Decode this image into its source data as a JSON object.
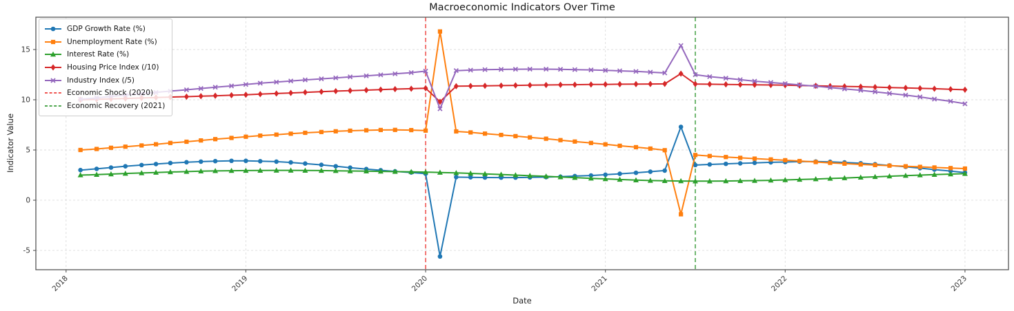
{
  "chart_data": {
    "type": "line",
    "title": "Macroeconomic Indicators Over Time",
    "xlabel": "Date",
    "ylabel": "Indicator Value",
    "grid": true,
    "legend_position": "upper left",
    "xlim": [
      2017.832,
      2023.242
    ],
    "ylim": [
      -6.92,
      18.22
    ],
    "y_ticks": [
      -5,
      0,
      5,
      10,
      15
    ],
    "x_ticks": [
      2018,
      2019,
      2020,
      2021,
      2022,
      2023
    ],
    "x_tick_labels": [
      "2018",
      "2019",
      "2020",
      "2021",
      "2022",
      "2023"
    ],
    "x": [
      2018.08,
      2018.17,
      2018.25,
      2018.33,
      2018.42,
      2018.5,
      2018.58,
      2018.67,
      2018.75,
      2018.83,
      2018.92,
      2019.0,
      2019.08,
      2019.17,
      2019.25,
      2019.33,
      2019.42,
      2019.5,
      2019.58,
      2019.67,
      2019.75,
      2019.83,
      2019.92,
      2020.0,
      2020.08,
      2020.17,
      2020.25,
      2020.33,
      2020.42,
      2020.5,
      2020.58,
      2020.67,
      2020.75,
      2020.83,
      2020.92,
      2021.0,
      2021.08,
      2021.17,
      2021.25,
      2021.33,
      2021.42,
      2021.5,
      2021.58,
      2021.67,
      2021.75,
      2021.83,
      2021.92,
      2022.0,
      2022.08,
      2022.17,
      2022.25,
      2022.33,
      2022.42,
      2022.5,
      2022.58,
      2022.67,
      2022.75,
      2022.83,
      2022.92,
      2023.0
    ],
    "series": [
      {
        "name": "GDP Growth Rate (%)",
        "color": "#1f77b4",
        "marker": "circle",
        "values": [
          3.0,
          3.12,
          3.25,
          3.38,
          3.5,
          3.6,
          3.7,
          3.78,
          3.84,
          3.89,
          3.92,
          3.92,
          3.88,
          3.84,
          3.76,
          3.65,
          3.52,
          3.38,
          3.24,
          3.1,
          2.98,
          2.87,
          2.76,
          2.64,
          -5.6,
          2.3,
          2.28,
          2.26,
          2.25,
          2.25,
          2.27,
          2.3,
          2.34,
          2.4,
          2.46,
          2.54,
          2.63,
          2.73,
          2.84,
          2.95,
          7.3,
          3.5,
          3.56,
          3.62,
          3.67,
          3.72,
          3.77,
          3.8,
          3.84,
          3.85,
          3.82,
          3.76,
          3.68,
          3.58,
          3.46,
          3.33,
          3.19,
          3.05,
          2.9,
          2.75
        ]
      },
      {
        "name": "Unemployment Rate (%)",
        "color": "#ff7f0e",
        "marker": "square",
        "values": [
          5.0,
          5.1,
          5.22,
          5.33,
          5.45,
          5.57,
          5.7,
          5.82,
          5.95,
          6.08,
          6.2,
          6.32,
          6.43,
          6.53,
          6.62,
          6.71,
          6.79,
          6.86,
          6.92,
          6.96,
          6.99,
          7.0,
          6.98,
          6.93,
          16.8,
          6.85,
          6.75,
          6.63,
          6.5,
          6.38,
          6.25,
          6.12,
          5.98,
          5.84,
          5.7,
          5.56,
          5.42,
          5.28,
          5.14,
          4.98,
          -1.4,
          4.5,
          4.4,
          4.3,
          4.22,
          4.14,
          4.06,
          3.98,
          3.9,
          3.8,
          3.72,
          3.64,
          3.56,
          3.5,
          3.44,
          3.38,
          3.32,
          3.26,
          3.2,
          3.15
        ]
      },
      {
        "name": "Interest Rate (%)",
        "color": "#2ca02c",
        "marker": "triangle",
        "values": [
          2.5,
          2.55,
          2.6,
          2.66,
          2.71,
          2.76,
          2.81,
          2.85,
          2.89,
          2.92,
          2.94,
          2.95,
          2.96,
          2.97,
          2.97,
          2.96,
          2.95,
          2.93,
          2.91,
          2.89,
          2.87,
          2.85,
          2.83,
          2.8,
          2.76,
          2.72,
          2.67,
          2.62,
          2.56,
          2.5,
          2.44,
          2.38,
          2.31,
          2.25,
          2.18,
          2.12,
          2.06,
          2.0,
          1.96,
          1.93,
          1.91,
          1.9,
          1.9,
          1.91,
          1.93,
          1.95,
          1.98,
          2.02,
          2.06,
          2.11,
          2.16,
          2.21,
          2.27,
          2.33,
          2.39,
          2.45,
          2.5,
          2.55,
          2.6,
          2.64
        ]
      },
      {
        "name": "Housing Price Index (/10)",
        "color": "#d62728",
        "marker": "diamond",
        "values": [
          10.0,
          10.04,
          10.09,
          10.13,
          10.18,
          10.22,
          10.27,
          10.31,
          10.36,
          10.4,
          10.45,
          10.5,
          10.56,
          10.62,
          10.68,
          10.74,
          10.8,
          10.86,
          10.91,
          10.96,
          11.01,
          11.06,
          11.1,
          11.15,
          9.8,
          11.35,
          11.37,
          11.39,
          11.41,
          11.43,
          11.45,
          11.47,
          11.49,
          11.5,
          11.52,
          11.53,
          11.55,
          11.56,
          11.57,
          11.58,
          12.6,
          11.57,
          11.55,
          11.53,
          11.51,
          11.49,
          11.47,
          11.45,
          11.42,
          11.39,
          11.36,
          11.33,
          11.3,
          11.26,
          11.22,
          11.18,
          11.14,
          11.1,
          11.05,
          11.0
        ]
      },
      {
        "name": "Industry Index (/5)",
        "color": "#9467bd",
        "marker": "x",
        "values": [
          10.05,
          10.19,
          10.33,
          10.47,
          10.6,
          10.73,
          10.86,
          10.99,
          11.12,
          11.25,
          11.38,
          11.52,
          11.65,
          11.76,
          11.87,
          11.98,
          12.08,
          12.18,
          12.28,
          12.38,
          12.48,
          12.58,
          12.7,
          12.85,
          9.1,
          12.9,
          12.95,
          13.0,
          13.02,
          13.04,
          13.05,
          13.05,
          13.03,
          13.0,
          12.97,
          12.93,
          12.88,
          12.82,
          12.75,
          12.67,
          15.4,
          12.5,
          12.3,
          12.15,
          12.0,
          11.85,
          11.72,
          11.6,
          11.48,
          11.35,
          11.22,
          11.08,
          10.94,
          10.79,
          10.63,
          10.46,
          10.28,
          10.07,
          9.85,
          9.6
        ]
      }
    ],
    "vlines": [
      {
        "label": "Economic Shock (2020)",
        "x": 2020.0,
        "color": "#ef5350",
        "style": "dashed"
      },
      {
        "label": "Economic Recovery (2021)",
        "x": 2021.5,
        "color": "#4da64d",
        "style": "dashed"
      }
    ],
    "colors": {
      "grid": "#dcdcdc",
      "spine": "#555555",
      "tick_label": "#333333"
    }
  }
}
